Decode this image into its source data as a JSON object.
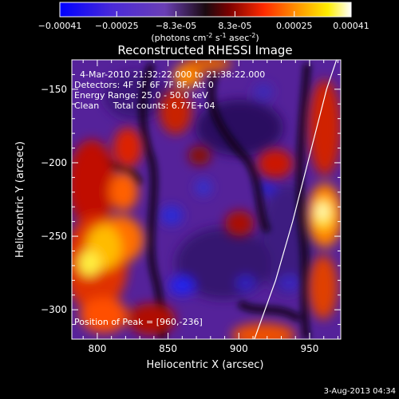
{
  "colorbar": {
    "ticks": [
      "-0.00041",
      "-0.00025",
      "-8.3e-05",
      "8.3e-05",
      "0.00025",
      "0.00041"
    ],
    "tick_values": [
      -0.00041,
      -0.00025,
      -8.3e-05,
      8.3e-05,
      0.00025,
      0.00041
    ],
    "range": [
      -0.00041,
      0.00041
    ],
    "units": {
      "base": "(photons cm",
      "exp1": "-2",
      "mid": " s",
      "exp2": "-1",
      "mid2": " asec",
      "exp3": "-2",
      "end": ")"
    }
  },
  "image": {
    "title": "Reconstructed RHESSI Image",
    "info": [
      "4-Mar-2010 21:32:22.000 to 21:38:22.000",
      "Detectors: 4F 5F 6F 7F 8F, Att 0",
      "Energy Range: 25.0 - 50.0 keV",
      "Clean     Total counts: 6.77E+04"
    ],
    "peak_label": "Position of Peak = [960,-236]",
    "peak": [
      960,
      -236
    ],
    "xlabel": "Heliocentric X (arcsec)",
    "ylabel": "Heliocentric Y (arcsec)",
    "xlim": [
      782,
      972
    ],
    "ylim": [
      -320,
      -130
    ],
    "xticks": [
      800,
      850,
      900,
      950
    ],
    "yticks": [
      -150,
      -200,
      -250,
      -300
    ],
    "limb_curve": [
      [
        911,
        -320
      ],
      [
        926,
        -280
      ],
      [
        938,
        -240
      ],
      [
        950,
        -195
      ],
      [
        962,
        -150
      ],
      [
        969,
        -130
      ]
    ]
  },
  "footer": {
    "timestamp": "3-Aug-2013 04:34"
  }
}
